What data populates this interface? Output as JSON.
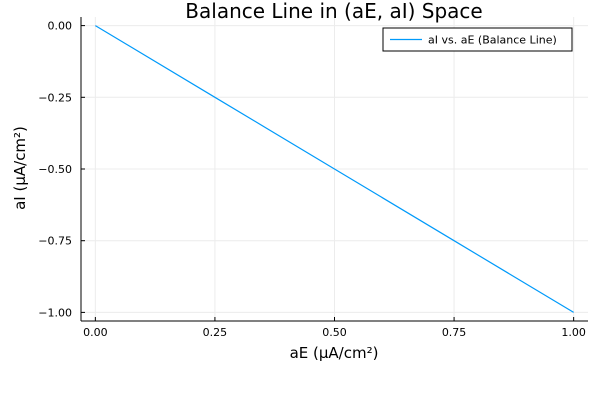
{
  "chart_data": {
    "type": "line",
    "title": "Balance Line in (aE, aI) Space",
    "xlabel": "aE (μA/cm²)",
    "ylabel": "aI (μA/cm²)",
    "xlim": [
      -0.03,
      1.03
    ],
    "ylim": [
      -1.03,
      0.03
    ],
    "xticks": [
      0.0,
      0.25,
      0.5,
      0.75,
      1.0
    ],
    "xtick_labels": [
      "0.00",
      "0.25",
      "0.50",
      "0.75",
      "1.00"
    ],
    "yticks": [
      0.0,
      -0.25,
      -0.5,
      -0.75,
      -1.0
    ],
    "ytick_labels": [
      "0.00",
      "−0.25",
      "−0.50",
      "−0.75",
      "−1.00"
    ],
    "grid": true,
    "legend_position": "top-right",
    "series": [
      {
        "name": "aI vs. aE (Balance Line)",
        "color": "#009AFA",
        "x": [
          0.0,
          0.25,
          0.5,
          0.75,
          1.0
        ],
        "y": [
          0.0,
          -0.25,
          -0.5,
          -0.75,
          -1.0
        ]
      }
    ]
  }
}
